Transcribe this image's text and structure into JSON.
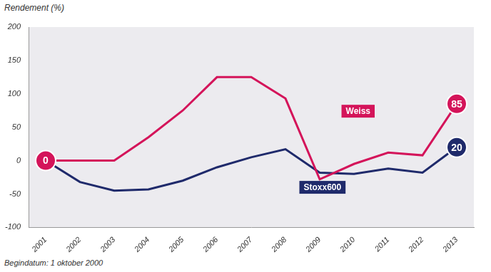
{
  "chart_data": {
    "type": "line",
    "y_label": "Rendement (%)",
    "footnote": "Begindatum: 1 oktober 2000",
    "categories": [
      "2001",
      "2002",
      "2003",
      "2004",
      "2005",
      "2006",
      "2007",
      "2008",
      "2009",
      "2010",
      "2011",
      "2012",
      "2013"
    ],
    "series": [
      {
        "name": "Weiss",
        "color": "#d4145a",
        "values": [
          0,
          0,
          0,
          35,
          75,
          125,
          125,
          93,
          -28,
          -5,
          12,
          8,
          85
        ]
      },
      {
        "name": "Stoxx600",
        "color": "#1f2a6b",
        "values": [
          0,
          -32,
          -45,
          -43,
          -30,
          -10,
          5,
          17,
          -18,
          -20,
          -12,
          -18,
          20
        ]
      }
    ],
    "ylim": [
      -100,
      200
    ],
    "yticks": [
      -100,
      -50,
      0,
      50,
      100,
      150,
      200
    ],
    "grid": false,
    "annotations": [
      {
        "text": "0",
        "series": "Weiss",
        "category": "2001",
        "value": 0
      },
      {
        "text": "85",
        "series": "Weiss",
        "category": "2013",
        "value": 85
      },
      {
        "text": "20",
        "series": "Stoxx600",
        "category": "2013",
        "value": 20
      }
    ]
  }
}
